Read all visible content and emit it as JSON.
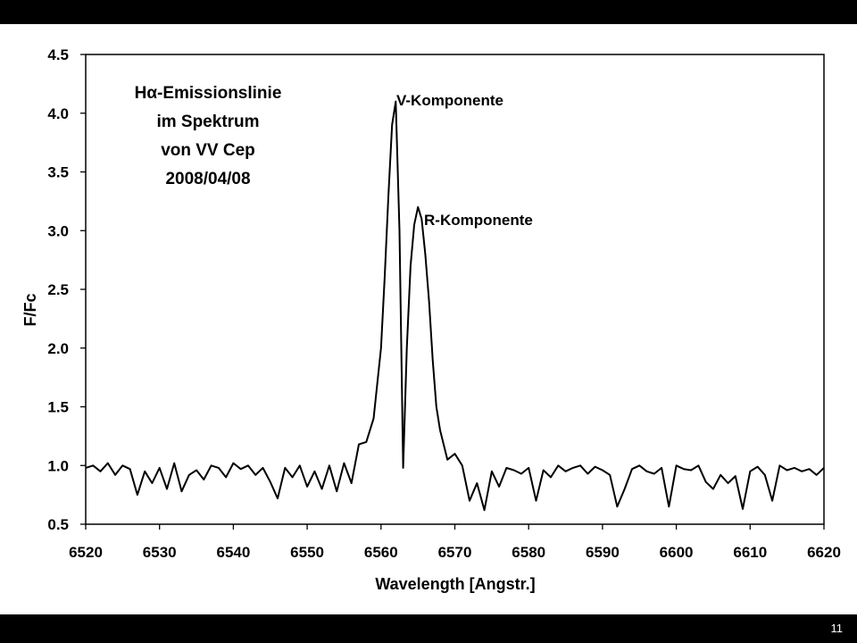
{
  "slide": {
    "page_number": "11"
  },
  "chart_data": {
    "type": "line",
    "title_lines": [
      "Hα-Emissionslinie",
      "im Spektrum",
      "von VV Cep",
      "2008/04/08"
    ],
    "xlabel": "Wavelength [Angstr.]",
    "ylabel": "F/Fc",
    "xlim": [
      6520,
      6620
    ],
    "ylim": [
      0.5,
      4.5
    ],
    "xticks": [
      6520,
      6530,
      6540,
      6550,
      6560,
      6570,
      6580,
      6590,
      6600,
      6610,
      6620
    ],
    "yticks": [
      0.5,
      1.0,
      1.5,
      2.0,
      2.5,
      3.0,
      3.5,
      4.0,
      4.5
    ],
    "xtick_labels": [
      "6520",
      "6530",
      "6540",
      "6550",
      "6560",
      "6570",
      "6580",
      "6590",
      "6600",
      "6610",
      "6620"
    ],
    "ytick_labels": [
      "0.5",
      "1.0",
      "1.5",
      "2.0",
      "2.5",
      "3.0",
      "3.5",
      "4.0",
      "4.5"
    ],
    "grid": false,
    "annotations": [
      {
        "text": "V-Komponente",
        "x": 6562.0,
        "y": 4.1
      },
      {
        "text": "R-Komponente",
        "x": 6565.5,
        "y": 3.15
      }
    ],
    "series": [
      {
        "x": [
          6520,
          6521,
          6522,
          6523,
          6524,
          6525,
          6526,
          6527,
          6528,
          6529,
          6530,
          6531,
          6532,
          6533,
          6534,
          6535,
          6536,
          6537,
          6538,
          6539,
          6540,
          6541,
          6542,
          6543,
          6544,
          6545,
          6546,
          6547,
          6548,
          6549,
          6550,
          6551,
          6552,
          6553,
          6554,
          6555,
          6556,
          6557,
          6558,
          6559,
          6560,
          6560.5,
          6561,
          6561.5,
          6562,
          6562.5,
          6563,
          6563.5,
          6564,
          6564.5,
          6565,
          6565.5,
          6566,
          6566.5,
          6567,
          6567.5,
          6568,
          6569,
          6570,
          6571,
          6572,
          6573,
          6574,
          6575,
          6576,
          6577,
          6578,
          6579,
          6580,
          6581,
          6582,
          6583,
          6584,
          6585,
          6586,
          6587,
          6588,
          6589,
          6590,
          6591,
          6592,
          6593,
          6594,
          6595,
          6596,
          6597,
          6598,
          6599,
          6600,
          6601,
          6602,
          6603,
          6604,
          6605,
          6606,
          6607,
          6608,
          6609,
          6610,
          6611,
          6612,
          6613,
          6614,
          6615,
          6616,
          6617,
          6618,
          6619,
          6620
        ],
        "y": [
          0.98,
          1.0,
          0.95,
          1.02,
          0.92,
          1.0,
          0.97,
          0.75,
          0.95,
          0.85,
          0.98,
          0.8,
          1.02,
          0.78,
          0.92,
          0.96,
          0.88,
          1.0,
          0.98,
          0.9,
          1.02,
          0.97,
          1.0,
          0.92,
          0.98,
          0.86,
          0.72,
          0.98,
          0.9,
          1.0,
          0.82,
          0.95,
          0.8,
          1.0,
          0.78,
          1.02,
          0.85,
          1.18,
          1.2,
          1.4,
          2.0,
          2.6,
          3.3,
          3.9,
          4.1,
          3.0,
          0.98,
          2.0,
          2.7,
          3.05,
          3.2,
          3.1,
          2.8,
          2.4,
          1.9,
          1.5,
          1.3,
          1.05,
          1.1,
          1.0,
          0.7,
          0.85,
          0.62,
          0.95,
          0.82,
          0.98,
          0.96,
          0.93,
          0.98,
          0.7,
          0.96,
          0.9,
          1.0,
          0.95,
          0.98,
          1.0,
          0.93,
          0.99,
          0.96,
          0.92,
          0.65,
          0.8,
          0.97,
          1.0,
          0.95,
          0.93,
          0.98,
          0.65,
          1.0,
          0.97,
          0.96,
          1.0,
          0.86,
          0.8,
          0.92,
          0.85,
          0.91,
          0.63,
          0.95,
          0.99,
          0.92,
          0.7,
          1.0,
          0.96,
          0.98,
          0.95,
          0.97,
          0.92,
          0.98
        ]
      }
    ]
  }
}
